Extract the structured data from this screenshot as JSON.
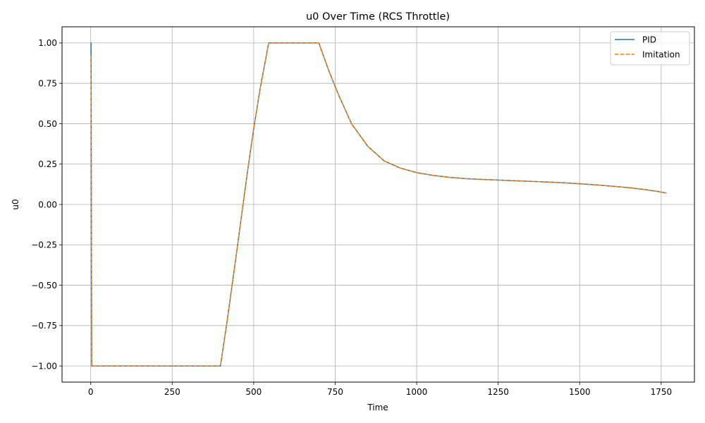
{
  "chart_data": {
    "type": "line",
    "title": "u0 Over Time (RCS Throttle)",
    "xlabel": "Time",
    "ylabel": "u0",
    "xlim": [
      -88,
      1852
    ],
    "ylim": [
      -1.1,
      1.1
    ],
    "x_ticks": [
      0,
      250,
      500,
      750,
      1000,
      1250,
      1500,
      1750
    ],
    "x_tick_labels": [
      "0",
      "250",
      "500",
      "750",
      "1000",
      "1250",
      "1500",
      "1750"
    ],
    "y_ticks": [
      -1.0,
      -0.75,
      -0.5,
      -0.25,
      0.0,
      0.25,
      0.5,
      0.75,
      1.0
    ],
    "y_tick_labels": [
      "−1.00",
      "−0.75",
      "−0.50",
      "−0.25",
      "0.00",
      "0.25",
      "0.50",
      "0.75",
      "1.00"
    ],
    "grid": true,
    "legend_position": "top-right",
    "series": [
      {
        "name": "PID",
        "color": "#1f77b4",
        "style": "solid",
        "x": [
          0,
          1,
          2,
          3,
          5,
          10,
          50,
          100,
          200,
          300,
          398,
          420,
          450,
          480,
          500,
          520,
          546,
          560,
          600,
          650,
          700,
          705,
          730,
          760,
          800,
          850,
          900,
          950,
          1000,
          1050,
          1100,
          1150,
          1200,
          1250,
          1300,
          1350,
          1400,
          1450,
          1500,
          1550,
          1600,
          1650,
          1700,
          1740,
          1766
        ],
        "y": [
          1.0,
          1.0,
          0.0,
          -1.0,
          -1.0,
          -1.0,
          -1.0,
          -1.0,
          -1.0,
          -1.0,
          -1.0,
          -0.7,
          -0.26,
          0.19,
          0.47,
          0.72,
          1.0,
          1.0,
          1.0,
          1.0,
          1.0,
          0.97,
          0.83,
          0.68,
          0.5,
          0.36,
          0.27,
          0.225,
          0.197,
          0.18,
          0.168,
          0.16,
          0.155,
          0.151,
          0.147,
          0.143,
          0.139,
          0.134,
          0.128,
          0.121,
          0.113,
          0.104,
          0.092,
          0.08,
          0.071
        ]
      },
      {
        "name": "Imitation",
        "color": "#ff7f0e",
        "style": "dashed",
        "x": [
          0,
          1,
          2,
          3,
          5,
          10,
          50,
          100,
          200,
          300,
          398,
          420,
          450,
          480,
          500,
          520,
          546,
          560,
          600,
          650,
          700,
          705,
          730,
          760,
          800,
          850,
          900,
          950,
          1000,
          1050,
          1100,
          1150,
          1200,
          1250,
          1300,
          1350,
          1400,
          1450,
          1500,
          1550,
          1600,
          1650,
          1700,
          1740,
          1766
        ],
        "y": [
          0.92,
          0.92,
          0.0,
          -1.0,
          -1.0,
          -1.0,
          -1.0,
          -1.0,
          -1.0,
          -1.0,
          -1.0,
          -0.7,
          -0.26,
          0.19,
          0.47,
          0.72,
          1.0,
          1.0,
          1.0,
          1.0,
          1.0,
          0.97,
          0.83,
          0.68,
          0.5,
          0.36,
          0.27,
          0.225,
          0.197,
          0.18,
          0.168,
          0.16,
          0.155,
          0.151,
          0.147,
          0.143,
          0.139,
          0.134,
          0.128,
          0.121,
          0.113,
          0.104,
          0.092,
          0.08,
          0.071
        ]
      }
    ]
  }
}
